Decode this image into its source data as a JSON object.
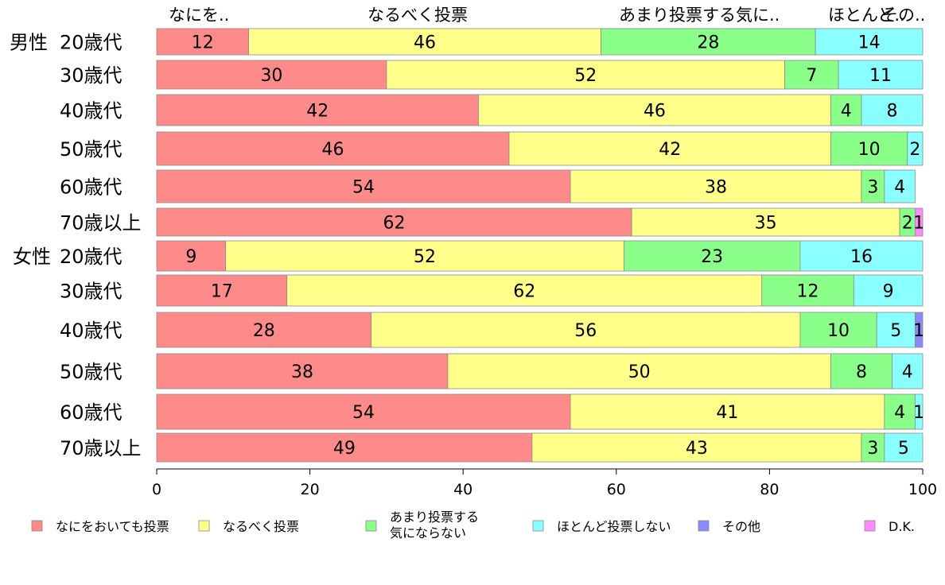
{
  "chart_data": {
    "type": "bar",
    "orientation": "horizontal",
    "stacked": true,
    "title": "",
    "xlabel": "",
    "ylabel": "",
    "xlim": [
      0,
      100
    ],
    "xticks": [
      "0",
      "20",
      "40",
      "60",
      "80",
      "100"
    ],
    "grid": false,
    "legend_position": "bottom",
    "top_labels": [
      "なにを..",
      "なるべく投票",
      "あまり投票する気に..",
      "ほとんど..",
      "その.."
    ],
    "groups": [
      {
        "label": "男性",
        "rows": [
          "20歳代",
          "30歳代",
          "40歳代",
          "50歳代",
          "60歳代",
          "70歳以上"
        ]
      },
      {
        "label": "女性",
        "rows": [
          "20歳代",
          "30歳代",
          "40歳代",
          "50歳代",
          "60歳代",
          "70歳以上"
        ]
      }
    ],
    "series": [
      {
        "name": "なにをおいても投票",
        "color": "#ff8a8a",
        "values": [
          12,
          30,
          42,
          46,
          54,
          62,
          9,
          17,
          28,
          38,
          54,
          49
        ]
      },
      {
        "name": "なるべく投票",
        "color": "#ffff8a",
        "values": [
          46,
          52,
          46,
          42,
          38,
          35,
          52,
          62,
          56,
          50,
          41,
          43
        ]
      },
      {
        "name": "あまり投票する\n気にならない",
        "color": "#8aff8a",
        "values": [
          28,
          7,
          4,
          10,
          3,
          2,
          23,
          12,
          10,
          8,
          4,
          3
        ]
      },
      {
        "name": "ほとんど投票しない",
        "color": "#8affff",
        "values": [
          14,
          11,
          8,
          2,
          4,
          0,
          16,
          9,
          5,
          4,
          1,
          5
        ]
      },
      {
        "name": "その他",
        "color": "#8a8aff",
        "values": [
          0,
          0,
          0,
          0,
          0,
          0,
          0,
          0,
          1,
          0,
          0,
          0
        ]
      },
      {
        "name": "D.K.",
        "color": "#ff8aff",
        "values": [
          0,
          0,
          0,
          0,
          0,
          1,
          0,
          0,
          0,
          0,
          0,
          0
        ]
      }
    ]
  }
}
